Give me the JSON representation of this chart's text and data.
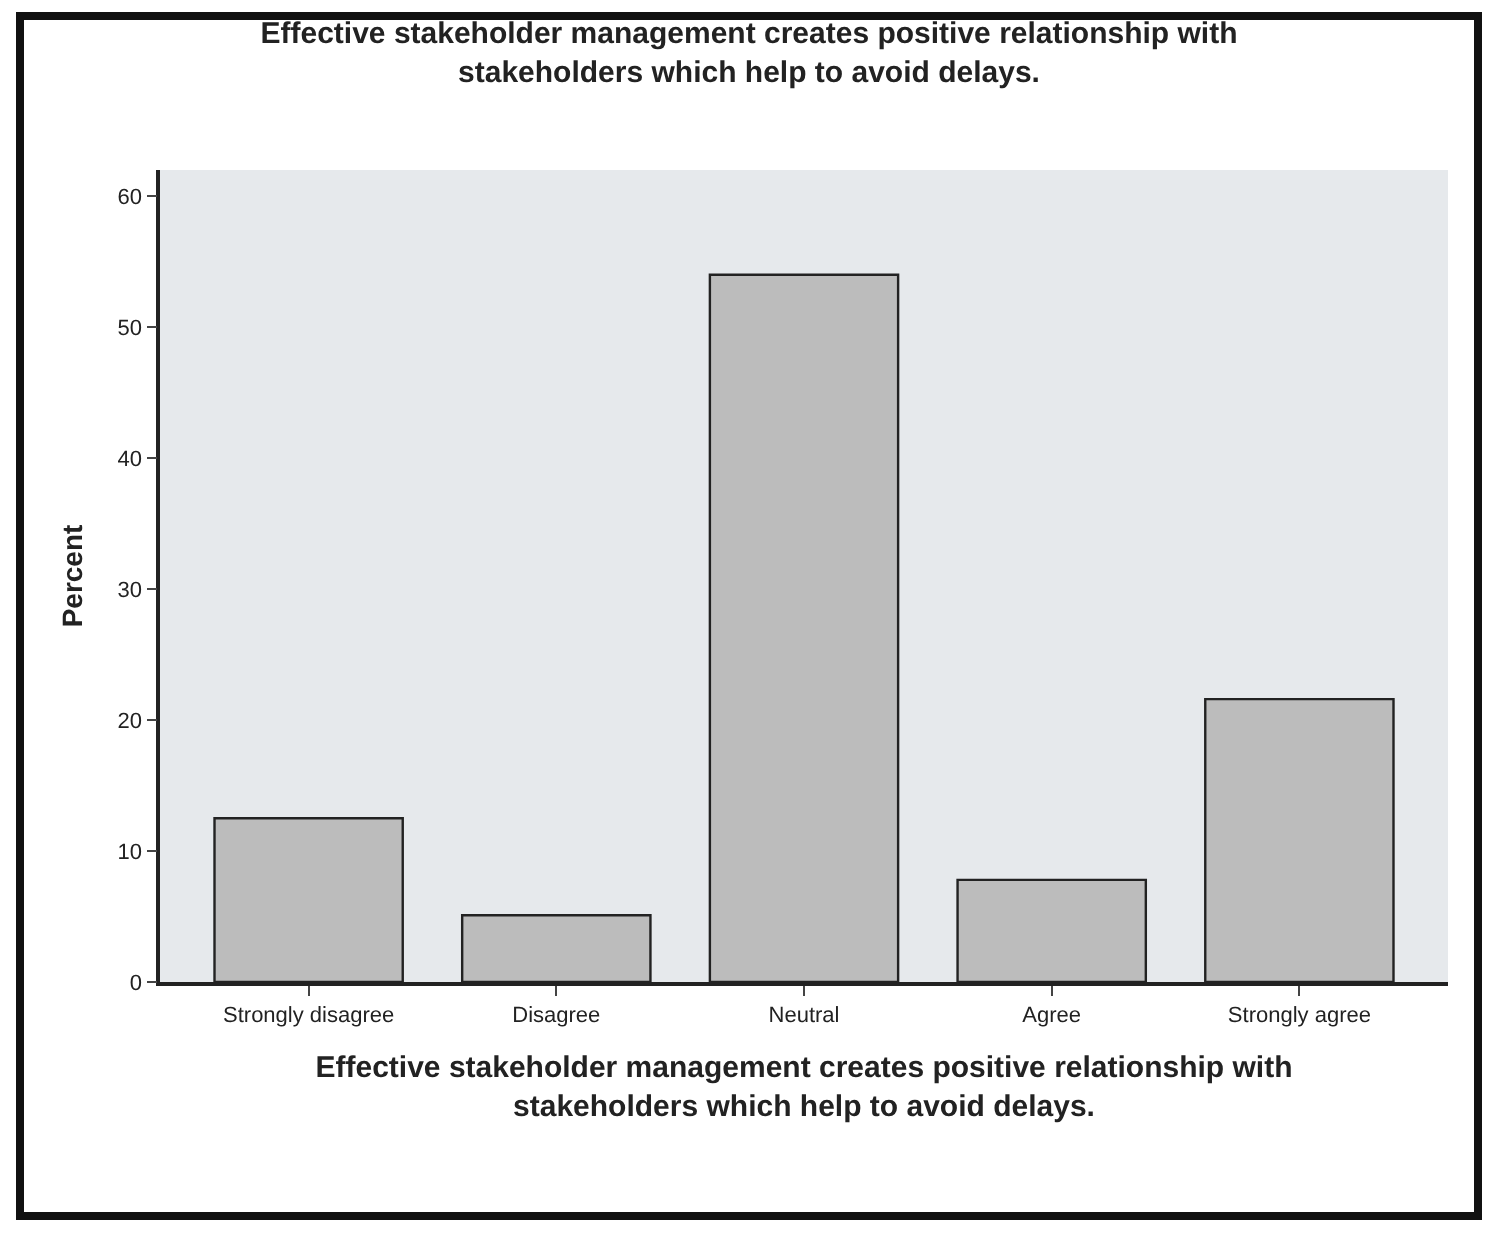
{
  "chart_data": {
    "type": "bar",
    "title": "Effective stakeholder management creates positive relationship with stakeholders which help to avoid delays.",
    "xlabel": "Effective stakeholder management creates positive relationship with stakeholders which help to avoid delays.",
    "ylabel": "Percent",
    "categories": [
      "Strongly disagree",
      "Disagree",
      "Neutral",
      "Agree",
      "Strongly agree"
    ],
    "values": [
      12.5,
      5.1,
      54.0,
      7.8,
      21.6
    ],
    "color": "#bcbcbc",
    "ylim": [
      0,
      62
    ],
    "yticks": [
      0,
      10,
      20,
      30,
      40,
      50,
      60
    ],
    "grid": false,
    "legend": false
  }
}
